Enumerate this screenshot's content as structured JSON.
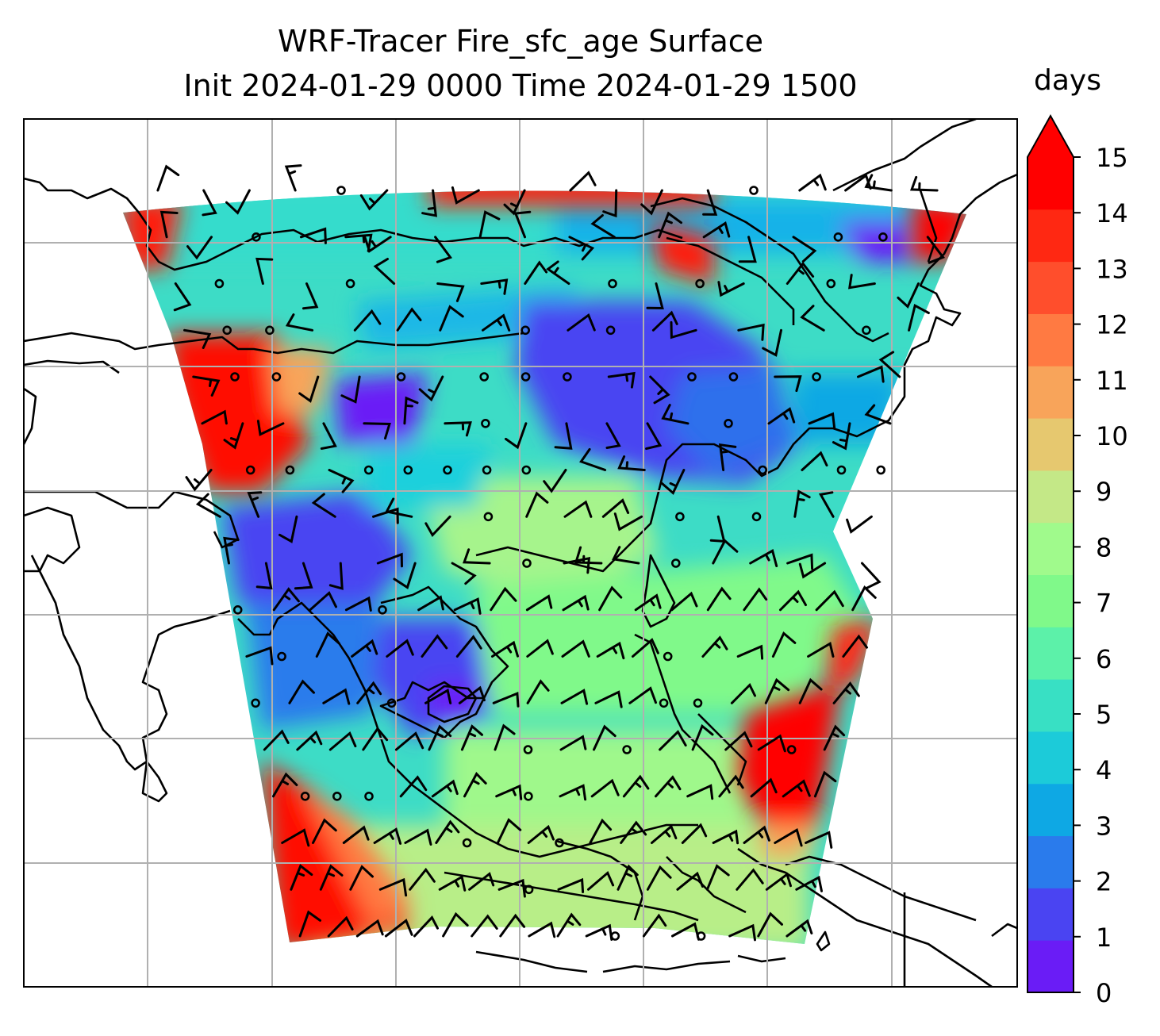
{
  "title": {
    "line1": "WRF-Tracer Fire_sfc_age Surface",
    "line2": "Init 2024-01-29 0000 Time 2024-01-29 1500"
  },
  "colorbar": {
    "units": "days",
    "ticks": [
      "0",
      "1",
      "2",
      "3",
      "4",
      "5",
      "6",
      "7",
      "8",
      "9",
      "10",
      "11",
      "12",
      "13",
      "14",
      "15"
    ],
    "extend": "max",
    "colors": [
      "#6a1cf6",
      "#4a44f2",
      "#2a7bec",
      "#0ea8e4",
      "#1ccbd9",
      "#38e0c4",
      "#5cf1a9",
      "#80f98a",
      "#a0fa8c",
      "#c4e887",
      "#e6c86f",
      "#f8a45a",
      "#ff7a42",
      "#ff4e2c",
      "#ff2812",
      "#ff0000"
    ]
  },
  "map": {
    "field": "Fire_sfc_age",
    "level": "Surface",
    "grid": "on",
    "coastlines": "on",
    "wind_barbs": "on"
  }
}
